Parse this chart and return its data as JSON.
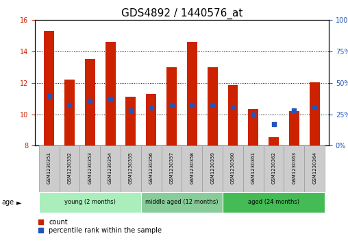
{
  "title": "GDS4892 / 1440576_at",
  "samples": [
    "GSM1230351",
    "GSM1230352",
    "GSM1230353",
    "GSM1230354",
    "GSM1230355",
    "GSM1230356",
    "GSM1230357",
    "GSM1230358",
    "GSM1230359",
    "GSM1230360",
    "GSM1230361",
    "GSM1230362",
    "GSM1230363",
    "GSM1230364"
  ],
  "counts": [
    15.3,
    12.2,
    13.5,
    14.6,
    11.1,
    11.3,
    13.0,
    14.6,
    13.0,
    11.85,
    10.35,
    8.55,
    10.2,
    12.05
  ],
  "percentile_values": [
    11.15,
    10.6,
    10.85,
    11.0,
    10.25,
    10.4,
    10.6,
    10.6,
    10.6,
    10.45,
    10.0,
    9.35,
    10.25,
    10.45
  ],
  "ylim": [
    8,
    16
  ],
  "yticks": [
    8,
    10,
    12,
    14,
    16
  ],
  "right_yticks": [
    0,
    25,
    50,
    75,
    100
  ],
  "bar_color": "#CC2200",
  "dot_color": "#2255BB",
  "bar_width": 0.5,
  "groups": [
    {
      "label": "young (2 months)",
      "start": 0,
      "end": 5,
      "color": "#AAEEBB"
    },
    {
      "label": "middle aged (12 months)",
      "start": 5,
      "end": 9,
      "color": "#88CC99"
    },
    {
      "label": "aged (24 months)",
      "start": 9,
      "end": 14,
      "color": "#44BB55"
    }
  ],
  "age_label": "age",
  "legend_count_label": "count",
  "legend_percentile_label": "percentile rank within the sample",
  "grid_linestyle": "dotted",
  "grid_color": "black",
  "title_fontsize": 11,
  "tick_fontsize": 7,
  "left_tick_color": "#CC2200",
  "right_tick_color": "#2255BB",
  "sample_box_color": "#CCCCCC",
  "sample_box_edge": "#999999"
}
